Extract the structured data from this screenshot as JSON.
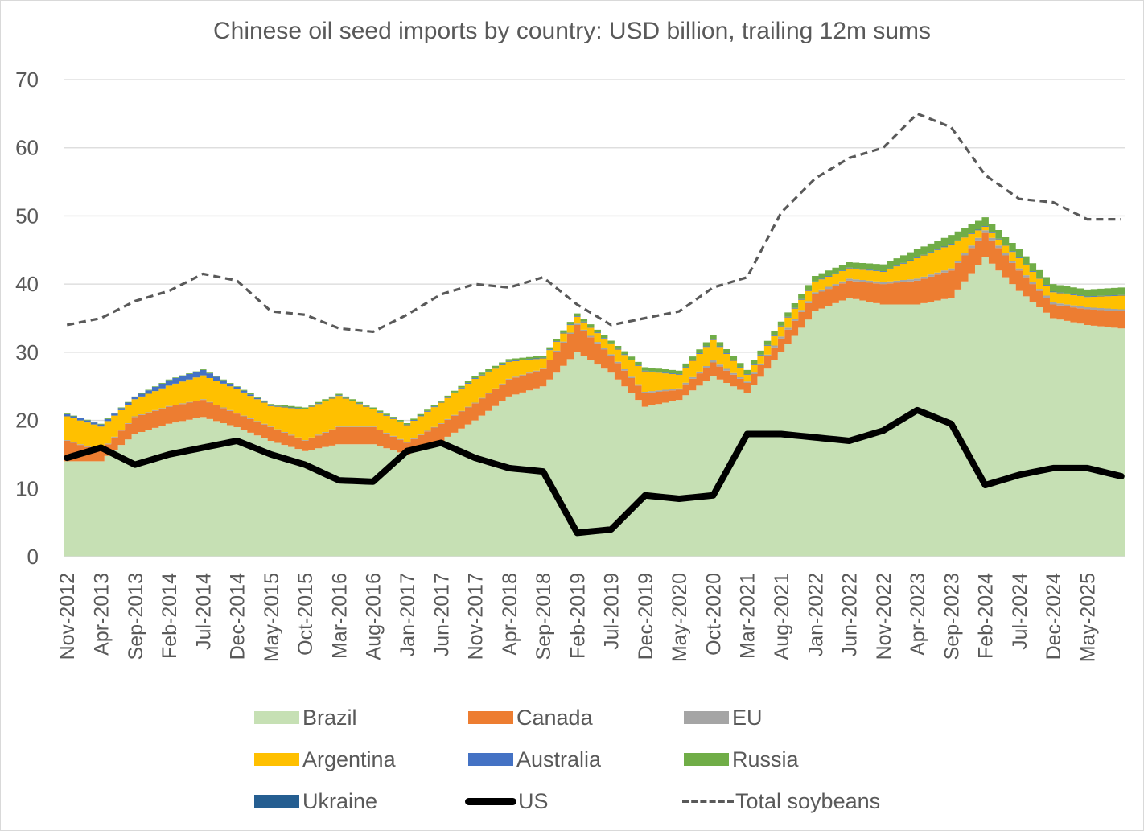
{
  "chart_data": {
    "type": "area",
    "stacked": true,
    "title": "Chinese oil seed imports by country: USD billion, trailing 12m sums",
    "ylim": [
      0,
      70
    ],
    "yticks": [
      0,
      10,
      20,
      30,
      40,
      50,
      60,
      70
    ],
    "gridlines": true,
    "legend_position": "bottom",
    "x_tick_labels": [
      "Nov-2012",
      "Apr-2013",
      "Sep-2013",
      "Feb-2014",
      "Jul-2014",
      "Dec-2014",
      "May-2015",
      "Oct-2015",
      "Mar-2016",
      "Aug-2016",
      "Jan-2017",
      "Jun-2017",
      "Nov-2017",
      "Apr-2018",
      "Sep-2018",
      "Feb-2019",
      "Jul-2019",
      "Dec-2019",
      "May-2020",
      "Oct-2020",
      "Mar-2021",
      "Aug-2021",
      "Jan-2022",
      "Jun-2022",
      "Nov-2022",
      "Apr-2023",
      "Sep-2023",
      "Feb-2024",
      "Jul-2024",
      "Dec-2024",
      "May-2025"
    ],
    "x_start": "Nov-2012",
    "frequency": "monthly",
    "anchor_step_months": 5,
    "note": "Series values are given at each 5-month tick anchor (Nov-2012 ... May-2025) plus the final month Oct-2025; intermediate months are interpolated.",
    "stacked_series": [
      {
        "name": "Brazil",
        "color": "#c6e0b4",
        "values": [
          14,
          14,
          18,
          19.5,
          20.5,
          19,
          17,
          15.5,
          16.5,
          16.5,
          15,
          17,
          20,
          23.5,
          25,
          30,
          27,
          22,
          23,
          26.5,
          24,
          30,
          36,
          38,
          37,
          37,
          38,
          44,
          39,
          35,
          34,
          33.5
        ]
      },
      {
        "name": "Canada",
        "color": "#ed7d31",
        "values": [
          3,
          1.5,
          2.5,
          2.5,
          2.5,
          2,
          2,
          1.5,
          2.5,
          2.5,
          1.7,
          2.5,
          2.5,
          2.5,
          2.5,
          4,
          2.5,
          2,
          1.5,
          2,
          1.5,
          2,
          2.5,
          2.5,
          3,
          3.5,
          4,
          3.5,
          3,
          2,
          2.3,
          2.5
        ]
      },
      {
        "name": "EU",
        "color": "#a5a5a5",
        "values": [
          0.1,
          0.1,
          0.1,
          0.1,
          0.1,
          0.1,
          0.1,
          0.1,
          0.1,
          0.1,
          0.1,
          0.1,
          0.1,
          0.1,
          0.1,
          0.2,
          0.2,
          0.2,
          0.2,
          0.3,
          0.2,
          0.3,
          0.3,
          0.3,
          0.3,
          0.3,
          0.3,
          0.4,
          0.3,
          0.3,
          0.3,
          0.3
        ]
      },
      {
        "name": "Argentina",
        "color": "#ffc000",
        "values": [
          3.5,
          3.5,
          2.5,
          3,
          3.5,
          3.5,
          3,
          4.5,
          4.5,
          2.5,
          2.5,
          3,
          3.5,
          2.5,
          1.5,
          1,
          1.5,
          3,
          2,
          3,
          1,
          1.5,
          1.5,
          1.5,
          1.5,
          3,
          3.5,
          0.5,
          1.5,
          1.5,
          1.5,
          2
        ]
      },
      {
        "name": "Australia",
        "color": "#4472c4",
        "values": [
          0.3,
          0.3,
          0.3,
          0.8,
          0.8,
          0.3,
          0.1,
          0.1,
          0.1,
          0.1,
          0.1,
          0.1,
          0.1,
          0.1,
          0.1,
          0.1,
          0.1,
          0.1,
          0.1,
          0.1,
          0.1,
          0.1,
          0.1,
          0.1,
          0.1,
          0.1,
          0.1,
          0.1,
          0.1,
          0.1,
          0.1,
          0.1
        ]
      },
      {
        "name": "Russia",
        "color": "#70ad47",
        "values": [
          0.1,
          0.1,
          0.1,
          0.1,
          0.1,
          0.1,
          0.2,
          0.2,
          0.2,
          0.2,
          0.2,
          0.2,
          0.3,
          0.3,
          0.3,
          0.4,
          0.4,
          0.5,
          0.5,
          0.6,
          0.6,
          0.6,
          0.8,
          0.8,
          1,
          1.2,
          1.3,
          1.3,
          1.2,
          1.1,
          1,
          1.1
        ]
      },
      {
        "name": "Ukraine",
        "color": "#255e91",
        "values": [
          0,
          0,
          0,
          0,
          0,
          0,
          0,
          0,
          0,
          0,
          0,
          0,
          0,
          0,
          0,
          0,
          0,
          0,
          0,
          0,
          0,
          0,
          0,
          0,
          0,
          0,
          0,
          0,
          0,
          0,
          0,
          0
        ]
      }
    ],
    "line_series": [
      {
        "name": "US",
        "color": "#000000",
        "style": "solid",
        "values": [
          14.5,
          16,
          13.5,
          15,
          16,
          17,
          15,
          13.5,
          11.2,
          11,
          15.5,
          16.7,
          14.5,
          13,
          12.5,
          3.5,
          4,
          9,
          8.5,
          9,
          18,
          18,
          17.5,
          17,
          18.5,
          21.5,
          19.5,
          10.5,
          12,
          13,
          13,
          11.8
        ]
      },
      {
        "name": "Total soybeans",
        "color": "#595959",
        "style": "dashed",
        "values": [
          34,
          35,
          37.5,
          39,
          41.5,
          40.5,
          36,
          35.5,
          33.5,
          33,
          35.5,
          38.5,
          40,
          39.5,
          41,
          37,
          34,
          35,
          36,
          39.5,
          41,
          50.5,
          55.5,
          58.5,
          60,
          65,
          63,
          56,
          52.5,
          52,
          49.5,
          49.5
        ]
      }
    ]
  },
  "legend": [
    {
      "label": "Brazil",
      "kind": "area",
      "color": "#c6e0b4"
    },
    {
      "label": "Canada",
      "kind": "area",
      "color": "#ed7d31"
    },
    {
      "label": "EU",
      "kind": "area",
      "color": "#a5a5a5"
    },
    {
      "label": "Argentina",
      "kind": "area",
      "color": "#ffc000"
    },
    {
      "label": "Australia",
      "kind": "area",
      "color": "#4472c4"
    },
    {
      "label": "Russia",
      "kind": "area",
      "color": "#70ad47"
    },
    {
      "label": "Ukraine",
      "kind": "area",
      "color": "#255e91"
    },
    {
      "label": "US",
      "kind": "line",
      "color": "#000000"
    },
    {
      "label": "Total soybeans",
      "kind": "dashed",
      "color": "#595959"
    }
  ]
}
